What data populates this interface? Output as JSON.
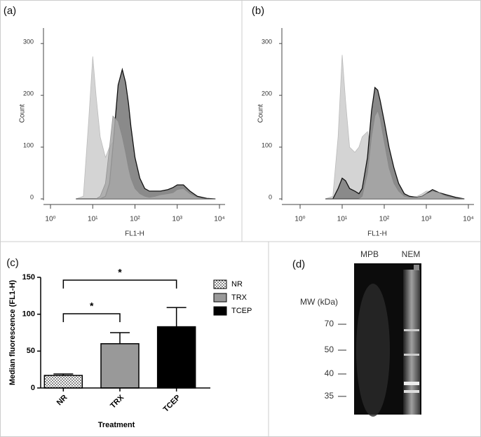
{
  "chart_data": [
    {
      "type": "area",
      "panel": "(a)",
      "ylabel": "Count",
      "xlabel": "FL1-H",
      "log_x": true,
      "x": [
        4,
        6,
        8,
        10,
        12,
        15,
        20,
        25,
        30,
        40,
        50,
        60,
        70,
        80,
        100,
        130,
        170,
        220,
        300,
        400,
        600,
        800,
        1000,
        1400,
        2000,
        3000,
        5000,
        8000
      ],
      "series": [
        {
          "color": "#d4d4d4",
          "values": [
            0,
            5,
            150,
            275,
            200,
            120,
            80,
            100,
            110,
            100,
            60,
            30,
            15,
            8,
            3,
            1,
            0,
            0,
            0,
            2,
            5,
            8,
            10,
            8,
            4,
            1,
            0,
            0
          ]
        },
        {
          "color": "#8a8a8a",
          "values": [
            0,
            0,
            0,
            0,
            0,
            0,
            5,
            30,
            100,
            220,
            250,
            225,
            185,
            140,
            80,
            40,
            20,
            15,
            15,
            15,
            18,
            22,
            27,
            27,
            15,
            5,
            1,
            0
          ]
        },
        {
          "color": "#a9a9a9",
          "values": [
            0,
            0,
            0,
            0,
            0,
            5,
            30,
            100,
            160,
            150,
            120,
            90,
            60,
            40,
            20,
            10,
            5,
            3,
            5,
            8,
            10,
            12,
            18,
            20,
            10,
            3,
            0,
            0
          ]
        }
      ],
      "xlim": [
        1,
        10000
      ],
      "xticks": [
        {
          "value": 1,
          "label": "10⁰"
        },
        {
          "value": 10,
          "label": "10¹"
        },
        {
          "value": 100,
          "label": "10²"
        },
        {
          "value": 1000,
          "label": "10³"
        },
        {
          "value": 10000,
          "label": "10⁴"
        }
      ],
      "ylim": [
        0,
        330
      ],
      "yticks": [
        0,
        100,
        200,
        300
      ]
    },
    {
      "type": "area",
      "panel": "(b)",
      "ylabel": "Count",
      "xlabel": "FL1-H",
      "log_x": true,
      "x": [
        4,
        6,
        8,
        10,
        12,
        15,
        20,
        25,
        30,
        40,
        50,
        60,
        70,
        80,
        100,
        130,
        170,
        220,
        300,
        400,
        600,
        800,
        1000,
        1400,
        2000,
        3000,
        5000,
        8000
      ],
      "series": [
        {
          "color": "#d4d4d4",
          "values": [
            0,
            5,
            120,
            278,
            190,
            100,
            90,
            100,
            120,
            130,
            90,
            50,
            25,
            12,
            5,
            2,
            0,
            0,
            0,
            2,
            5,
            10,
            15,
            15,
            8,
            2,
            0,
            0
          ]
        },
        {
          "color": "#8a8a8a",
          "values": [
            0,
            0,
            20,
            40,
            35,
            20,
            15,
            10,
            20,
            80,
            170,
            215,
            210,
            190,
            150,
            100,
            60,
            30,
            10,
            5,
            3,
            5,
            10,
            18,
            12,
            8,
            3,
            0
          ]
        },
        {
          "color": "#a9a9a9",
          "values": [
            0,
            0,
            0,
            0,
            0,
            0,
            0,
            0,
            5,
            50,
            120,
            160,
            170,
            155,
            110,
            60,
            30,
            15,
            5,
            3,
            3,
            5,
            10,
            15,
            12,
            5,
            1,
            0
          ]
        }
      ],
      "xlim": [
        1,
        10000
      ],
      "xticks": [
        {
          "value": 1,
          "label": "10⁰"
        },
        {
          "value": 10,
          "label": "10¹"
        },
        {
          "value": 100,
          "label": "10²"
        },
        {
          "value": 1000,
          "label": "10³"
        },
        {
          "value": 10000,
          "label": "10⁴"
        }
      ],
      "ylim": [
        0,
        330
      ],
      "yticks": [
        0,
        100,
        200,
        300
      ]
    },
    {
      "type": "bar",
      "panel": "(c)",
      "ylabel": "Median fluorescence (FL1-H)",
      "xlabel": "Treatment",
      "categories": [
        "NR",
        "TRX",
        "TCEP"
      ],
      "values": [
        17,
        60,
        83
      ],
      "errors": [
        2,
        15,
        26
      ],
      "colors": [
        "#ffffff",
        "#999999",
        "#000000"
      ],
      "fill_patterns": [
        "dots",
        "none",
        "none"
      ],
      "ylim": [
        0,
        150
      ],
      "yticks": [
        0,
        50,
        100,
        150
      ],
      "annotations": [
        "*",
        "*"
      ],
      "legend": "right"
    },
    {
      "type": "gel",
      "panel": "(d)",
      "lanes": [
        "MPB",
        "NEM"
      ],
      "ylabel": "MW (kDa)",
      "markers": [
        70,
        50,
        40,
        35
      ]
    }
  ]
}
